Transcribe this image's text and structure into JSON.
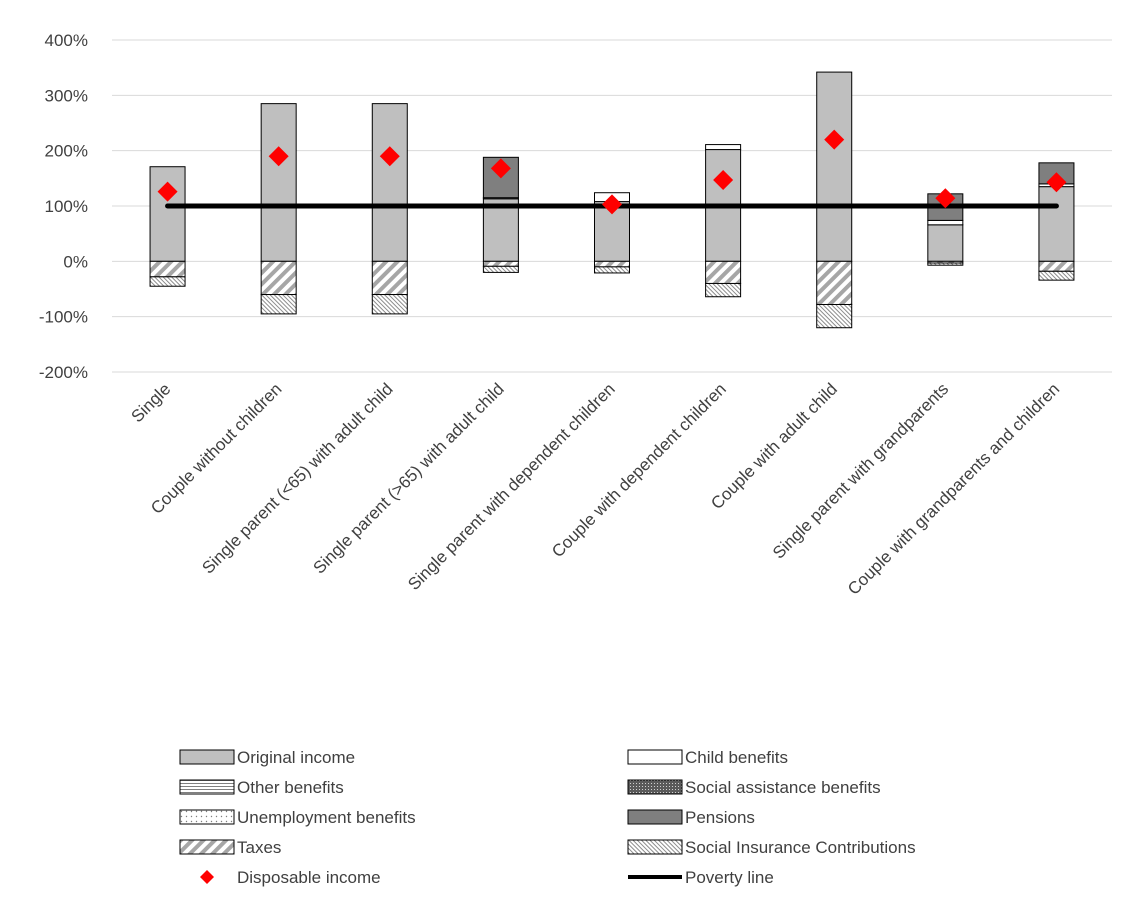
{
  "chart_data": {
    "type": "bar",
    "stacked": true,
    "title": "",
    "xlabel": "",
    "ylabel": "",
    "ylim": [
      -200,
      400
    ],
    "y_ticks": [
      -200,
      -100,
      0,
      100,
      200,
      300,
      400
    ],
    "y_tick_labels": [
      "-200%",
      "-100%",
      "0%",
      "100%",
      "200%",
      "300%",
      "400%"
    ],
    "grid": "horizontal",
    "legend_position": "bottom",
    "categories": [
      "Single",
      "Couple without children",
      "Single parent (<65) with adult child",
      "Single parent (>65) with adult child",
      "Single parent with dependent children",
      "Couple with dependent children",
      "Couple with adult child",
      "Single parent with grandparents",
      "Couple with grandparents and children"
    ],
    "series": [
      {
        "name": "Original income",
        "values": [
          171,
          285,
          285,
          113,
          108,
          202,
          342,
          66,
          135
        ],
        "fill": "#bfbfbf",
        "pattern": "solid"
      },
      {
        "name": "Child benefits",
        "values": [
          0,
          0,
          0,
          2,
          16,
          9,
          0,
          8,
          5
        ],
        "fill": "#ffffff",
        "pattern": "solid"
      },
      {
        "name": "Other benefits",
        "values": [
          0,
          0,
          0,
          0,
          0,
          0,
          0,
          0,
          0
        ],
        "fill": "#ffffff",
        "pattern": "hlines"
      },
      {
        "name": "Social assistance benefits",
        "values": [
          0,
          0,
          0,
          0,
          0,
          0,
          0,
          0,
          0
        ],
        "fill": "#808080",
        "pattern": "crosshatch"
      },
      {
        "name": "Unemployment benefits",
        "values": [
          0,
          0,
          0,
          0,
          0,
          0,
          0,
          0,
          0
        ],
        "fill": "#ffffff",
        "pattern": "dots"
      },
      {
        "name": "Pensions",
        "values": [
          0,
          0,
          0,
          73,
          0,
          0,
          0,
          48,
          38
        ],
        "fill": "#7f7f7f",
        "pattern": "solid"
      },
      {
        "name": "Taxes",
        "values": [
          -28,
          -60,
          -60,
          -9,
          -10,
          -40,
          -78,
          -3,
          -18
        ],
        "fill": "#ffffff",
        "pattern": "diagonal"
      },
      {
        "name": "Social Insurance Contributions",
        "values": [
          -17,
          -35,
          -35,
          -11,
          -11,
          -24,
          -42,
          -4,
          -16
        ],
        "fill": "#ffffff",
        "pattern": "finehatch"
      }
    ],
    "disposable_income": {
      "name": "Disposable income",
      "values": [
        126,
        190,
        190,
        168,
        103,
        147,
        220,
        114,
        143
      ],
      "color": "#ff0000",
      "marker": "diamond"
    },
    "poverty_line": {
      "name": "Poverty line",
      "value": 100,
      "color": "#000000"
    }
  },
  "legend": {
    "items": [
      {
        "label": "Original income",
        "key": "original"
      },
      {
        "label": "Child benefits",
        "key": "child"
      },
      {
        "label": "Other benefits",
        "key": "other"
      },
      {
        "label": "Social assistance benefits",
        "key": "social_assistance"
      },
      {
        "label": "Unemployment benefits",
        "key": "unemployment"
      },
      {
        "label": "Pensions",
        "key": "pensions"
      },
      {
        "label": "Taxes",
        "key": "taxes"
      },
      {
        "label": "Social Insurance Contributions",
        "key": "sic"
      },
      {
        "label": "Disposable income",
        "key": "disposable"
      },
      {
        "label": "Poverty line",
        "key": "poverty"
      }
    ]
  }
}
